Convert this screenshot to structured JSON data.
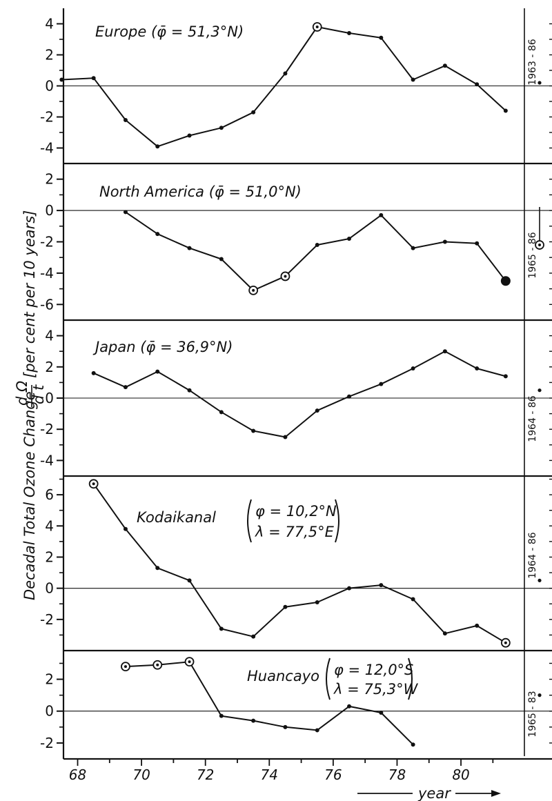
{
  "chart_data": {
    "type": "line",
    "ylabel": {
      "main": "Decadal Total Ozone Change",
      "fraction_num": "d Ω",
      "fraction_den": "d t",
      "units": "[per cent per 10 years]"
    },
    "xlabel": "year",
    "xlim": [
      67.6,
      81.9
    ],
    "x_ticks": [
      68,
      70,
      72,
      74,
      76,
      78,
      80
    ],
    "panels": [
      {
        "id": "europe",
        "title": "Europe (φ̄ = 51,3°N)",
        "period": "1963 - 86",
        "ylim": [
          -5.0,
          5.0
        ],
        "y_ticks": [
          -4,
          -2,
          0,
          2,
          4
        ],
        "points": [
          {
            "x": 67.5,
            "y": 0.4,
            "circled": false
          },
          {
            "x": 68.5,
            "y": 0.5,
            "circled": false
          },
          {
            "x": 69.5,
            "y": -2.2,
            "circled": false
          },
          {
            "x": 70.5,
            "y": -3.9,
            "circled": false
          },
          {
            "x": 71.5,
            "y": -3.2,
            "circled": false
          },
          {
            "x": 72.5,
            "y": -2.7,
            "circled": false
          },
          {
            "x": 73.5,
            "y": -1.7,
            "circled": false
          },
          {
            "x": 74.5,
            "y": 0.8,
            "circled": false
          },
          {
            "x": 75.5,
            "y": 3.8,
            "circled": true
          },
          {
            "x": 76.5,
            "y": 3.4,
            "circled": false
          },
          {
            "x": 77.5,
            "y": 3.1,
            "circled": false
          },
          {
            "x": 78.5,
            "y": 0.4,
            "circled": false
          },
          {
            "x": 79.5,
            "y": 1.3,
            "circled": false
          },
          {
            "x": 80.5,
            "y": 0.1,
            "circled": false
          },
          {
            "x": 81.4,
            "y": -1.6,
            "circled": false
          }
        ],
        "longterm": {
          "y": 0.2,
          "style": "dot"
        }
      },
      {
        "id": "north-america",
        "title": "North America (φ̄ = 51,0°N)",
        "period": "1965 - 86",
        "ylim": [
          -7.0,
          3.0
        ],
        "y_ticks": [
          -6,
          -4,
          -2,
          0,
          2
        ],
        "points": [
          {
            "x": 69.5,
            "y": -0.1,
            "circled": false
          },
          {
            "x": 70.5,
            "y": -1.5,
            "circled": false
          },
          {
            "x": 71.5,
            "y": -2.4,
            "circled": false
          },
          {
            "x": 72.5,
            "y": -3.1,
            "circled": false
          },
          {
            "x": 73.5,
            "y": -5.1,
            "circled": true
          },
          {
            "x": 74.5,
            "y": -4.2,
            "circled": true
          },
          {
            "x": 75.5,
            "y": -2.2,
            "circled": false
          },
          {
            "x": 76.5,
            "y": -1.8,
            "circled": false
          },
          {
            "x": 77.5,
            "y": -0.3,
            "circled": false
          },
          {
            "x": 78.5,
            "y": -2.4,
            "circled": false
          },
          {
            "x": 79.5,
            "y": -2.0,
            "circled": false
          },
          {
            "x": 80.5,
            "y": -2.1,
            "circled": false
          },
          {
            "x": 81.4,
            "y": -4.5,
            "circled": false,
            "large": true
          }
        ],
        "longterm": {
          "y": -2.2,
          "style": "circled"
        }
      },
      {
        "id": "japan",
        "title": "Japan (φ̄ = 36,9°N)",
        "period": "1964 - 86",
        "ylim": [
          -5.0,
          5.0
        ],
        "y_ticks": [
          -4,
          -2,
          0,
          2,
          4
        ],
        "points": [
          {
            "x": 68.5,
            "y": 1.6,
            "circled": false
          },
          {
            "x": 69.5,
            "y": 0.7,
            "circled": false
          },
          {
            "x": 70.5,
            "y": 1.7,
            "circled": false
          },
          {
            "x": 71.5,
            "y": 0.5,
            "circled": false
          },
          {
            "x": 72.5,
            "y": -0.9,
            "circled": false
          },
          {
            "x": 73.5,
            "y": -2.1,
            "circled": false
          },
          {
            "x": 74.5,
            "y": -2.5,
            "circled": false
          },
          {
            "x": 75.5,
            "y": -0.8,
            "circled": false
          },
          {
            "x": 76.5,
            "y": 0.1,
            "circled": false
          },
          {
            "x": 77.5,
            "y": 0.9,
            "circled": false
          },
          {
            "x": 78.5,
            "y": 1.9,
            "circled": false
          },
          {
            "x": 79.5,
            "y": 3.0,
            "circled": false
          },
          {
            "x": 80.5,
            "y": 1.9,
            "circled": false
          },
          {
            "x": 81.4,
            "y": 1.4,
            "circled": false
          }
        ],
        "longterm": {
          "y": 0.5,
          "style": "dot"
        }
      },
      {
        "id": "kodaikanal",
        "title": "Kodaikanal",
        "coords": [
          "φ = 10,2°N",
          "λ = 77,5°E"
        ],
        "period": "1964 - 86",
        "ylim": [
          -4.0,
          7.2
        ],
        "y_ticks": [
          -2,
          0,
          2,
          4,
          6
        ],
        "points": [
          {
            "x": 68.5,
            "y": 6.7,
            "circled": true
          },
          {
            "x": 69.5,
            "y": 3.8,
            "circled": false
          },
          {
            "x": 70.5,
            "y": 1.3,
            "circled": false
          },
          {
            "x": 71.5,
            "y": 0.5,
            "circled": false
          },
          {
            "x": 72.5,
            "y": -2.6,
            "circled": false
          },
          {
            "x": 73.5,
            "y": -3.1,
            "circled": false
          },
          {
            "x": 74.5,
            "y": -1.2,
            "circled": false
          },
          {
            "x": 75.5,
            "y": -0.9,
            "circled": false
          },
          {
            "x": 76.5,
            "y": 0.0,
            "circled": false
          },
          {
            "x": 77.5,
            "y": 0.2,
            "circled": false
          },
          {
            "x": 78.5,
            "y": -0.7,
            "circled": false
          },
          {
            "x": 79.5,
            "y": -2.9,
            "circled": false
          },
          {
            "x": 80.5,
            "y": -2.4,
            "circled": false
          },
          {
            "x": 81.4,
            "y": -3.5,
            "circled": true
          }
        ],
        "longterm": {
          "y": 0.5,
          "style": "dot"
        }
      },
      {
        "id": "huancayo",
        "title": "Huancayo",
        "coords": [
          "φ = 12,0°S",
          "λ = 75,3°W"
        ],
        "period": "1965 - 83",
        "ylim": [
          -3.0,
          3.8
        ],
        "y_ticks": [
          -2,
          0,
          2
        ],
        "points": [
          {
            "x": 69.5,
            "y": 2.8,
            "circled": true
          },
          {
            "x": 70.5,
            "y": 2.9,
            "circled": true
          },
          {
            "x": 71.5,
            "y": 3.1,
            "circled": true
          },
          {
            "x": 72.5,
            "y": -0.3,
            "circled": false
          },
          {
            "x": 73.5,
            "y": -0.6,
            "circled": false
          },
          {
            "x": 74.5,
            "y": -1.0,
            "circled": false
          },
          {
            "x": 75.5,
            "y": -1.2,
            "circled": false
          },
          {
            "x": 76.5,
            "y": 0.3,
            "circled": false
          },
          {
            "x": 77.5,
            "y": -0.1,
            "circled": false
          },
          {
            "x": 78.5,
            "y": -2.1,
            "circled": false
          }
        ],
        "longterm": {
          "y": 1.0,
          "style": "dot"
        }
      }
    ]
  }
}
